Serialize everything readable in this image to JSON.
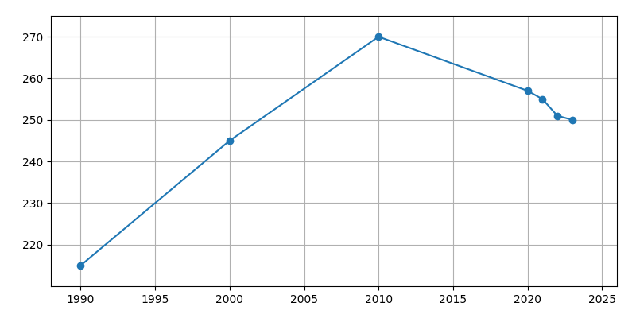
{
  "chart_data": {
    "type": "line",
    "x": [
      1990,
      2000,
      2010,
      2020,
      2021,
      2022,
      2023
    ],
    "values": [
      215,
      245,
      270,
      257,
      255,
      251,
      250
    ],
    "marker": "o",
    "xlim": [
      1988,
      2026
    ],
    "xticks": [
      1990,
      1995,
      2000,
      2005,
      2010,
      2015,
      2020,
      2025
    ],
    "ylim": [
      210,
      275
    ],
    "yticks": [
      220,
      230,
      240,
      250,
      260,
      270
    ],
    "grid": true
  }
}
